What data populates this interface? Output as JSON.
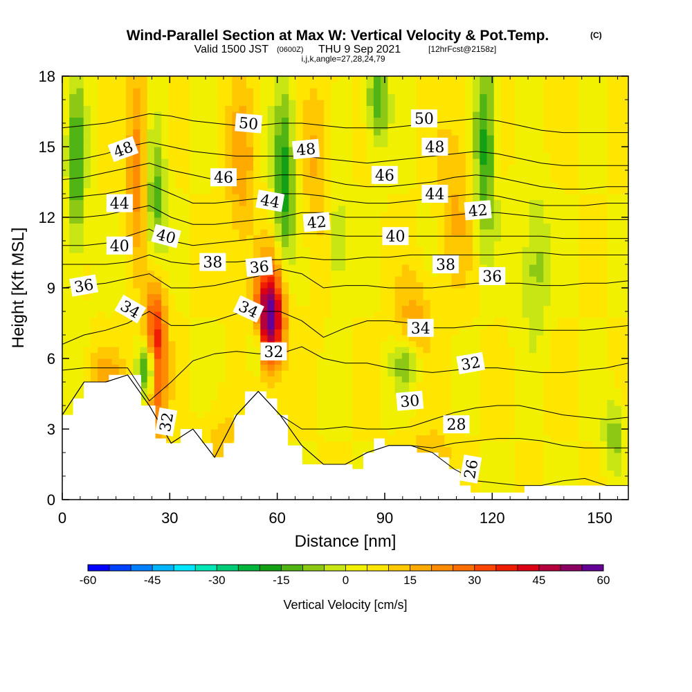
{
  "header": {
    "title": "Wind-Parallel Section at Max W: Vertical Velocity & Pot.Temp.",
    "title_suffix": "(C)",
    "valid_prefix": "Valid 1500 JST",
    "valid_utc": "(0600Z)",
    "valid_date": "THU 9 Sep 2021",
    "forecast_info": "[12hrFcst@2158z]",
    "grid_info": "i,j,k,angle=27,28,24,79"
  },
  "chart_data": {
    "type": "heatmap",
    "title": "Wind-Parallel Section at Max W: Vertical Velocity & Pot.Temp.",
    "xlabel": "Distance [nm]",
    "ylabel": "Height [Kft MSL]",
    "xlim": [
      0,
      158
    ],
    "ylim": [
      0,
      18
    ],
    "x_ticks": [
      0,
      30,
      60,
      90,
      120,
      150
    ],
    "x_tick_labels": [
      "0",
      "30",
      "60",
      "90",
      "120",
      "150"
    ],
    "y_ticks": [
      0,
      3,
      6,
      9,
      12,
      15,
      18
    ],
    "y_tick_labels": [
      "0",
      "3",
      "6",
      "9",
      "12",
      "15",
      "18"
    ],
    "grid": false,
    "background_value": 5,
    "updrafts": [
      {
        "x": 58,
        "y": 7.8,
        "max": 60,
        "rx": 4,
        "ry": 2.2
      },
      {
        "x": 26,
        "y": 6.5,
        "max": 45,
        "rx": 3,
        "ry": 3.5
      },
      {
        "x": 21,
        "y": 14.5,
        "max": 25,
        "rx": 3,
        "ry": 4
      },
      {
        "x": 12,
        "y": 5.5,
        "max": 15,
        "rx": 6,
        "ry": 1
      },
      {
        "x": 50,
        "y": 14,
        "max": 18,
        "rx": 4,
        "ry": 4
      },
      {
        "x": 71,
        "y": 14,
        "max": 15,
        "rx": 4,
        "ry": 4
      },
      {
        "x": 98,
        "y": 7.5,
        "max": 18,
        "rx": 5,
        "ry": 2
      },
      {
        "x": 110,
        "y": 13,
        "max": 15,
        "rx": 5,
        "ry": 4
      },
      {
        "x": 103,
        "y": 2,
        "max": 15,
        "rx": 6,
        "ry": 1
      },
      {
        "x": 45,
        "y": 2.5,
        "max": 12,
        "rx": 6,
        "ry": 1.5
      }
    ],
    "downdrafts": [
      {
        "x": 24,
        "y": 5.5,
        "min": -30,
        "rx": 2.5,
        "ry": 1.2
      },
      {
        "x": 26,
        "y": 12,
        "min": -15,
        "rx": 3,
        "ry": 4
      },
      {
        "x": 4,
        "y": 14,
        "min": -15,
        "rx": 2.5,
        "ry": 4
      },
      {
        "x": 62,
        "y": 13.5,
        "min": -18,
        "rx": 3,
        "ry": 4
      },
      {
        "x": 54,
        "y": 6.5,
        "min": -12,
        "rx": 2,
        "ry": 1.2
      },
      {
        "x": 88,
        "y": 17,
        "min": -15,
        "rx": 3,
        "ry": 2
      },
      {
        "x": 118,
        "y": 15,
        "min": -18,
        "rx": 3,
        "ry": 4
      },
      {
        "x": 96,
        "y": 5.8,
        "min": -12,
        "rx": 4,
        "ry": 1
      },
      {
        "x": 132,
        "y": 10,
        "min": -8,
        "rx": 4,
        "ry": 3
      },
      {
        "x": 77,
        "y": 11,
        "min": -8,
        "rx": 3,
        "ry": 2
      },
      {
        "x": 154,
        "y": 2.8,
        "min": -8,
        "rx": 3,
        "ry": 1.5
      }
    ],
    "terrain": {
      "x": [
        0,
        3,
        3,
        6,
        6,
        13,
        13,
        22,
        22,
        26,
        26,
        29,
        29,
        33,
        33,
        39,
        39,
        42,
        42,
        45,
        45,
        48,
        48,
        51,
        51,
        57,
        57,
        60,
        60,
        63,
        63,
        67,
        67,
        81,
        81,
        84,
        84,
        87,
        87,
        90,
        90,
        99,
        99,
        105,
        105,
        108,
        108,
        111,
        111,
        114,
        114,
        120,
        120,
        126,
        126,
        129,
        129,
        141,
        141,
        158
      ],
      "y": [
        3.6,
        3.6,
        4.3,
        4.3,
        5.0,
        5.0,
        5.3,
        5.3,
        4.0,
        4.0,
        2.6,
        2.6,
        2.4,
        2.4,
        3.0,
        3.0,
        2.4,
        2.4,
        1.8,
        1.8,
        2.4,
        2.4,
        3.6,
        3.6,
        4.6,
        4.6,
        4.3,
        4.3,
        3.6,
        3.6,
        2.3,
        2.3,
        1.5,
        1.5,
        1.3,
        1.3,
        2.0,
        2.0,
        2.6,
        2.6,
        2.3,
        2.3,
        2.0,
        2.0,
        1.8,
        1.8,
        1.3,
        1.3,
        0.6,
        0.6,
        0.3,
        0.3,
        0.3,
        0.3,
        0.3,
        0.3,
        0.6,
        0.6,
        0.6,
        0.6
      ]
    },
    "theta_contours": [
      {
        "level": 26,
        "y": [
          0.4,
          0.4,
          0.4,
          0.4,
          0.4,
          0.4,
          0.4,
          0.4,
          0.4,
          0.4,
          0.4,
          0.4,
          0.4,
          0.4,
          0.4,
          0.4,
          0.6,
          0.8,
          0.9,
          0.8,
          0.7,
          0.6,
          0.5,
          0.8,
          0.9,
          0.6,
          0.5
        ]
      },
      {
        "level": 28,
        "y": [
          0.8,
          0.8,
          0.8,
          0.8,
          0.8,
          0.8,
          0.8,
          0.8,
          0.8,
          0.8,
          0.8,
          0.8,
          0.8,
          1.3,
          1.6,
          1.8,
          2.0,
          2.2,
          2.4,
          2.5,
          2.6,
          2.6,
          2.5,
          2.3,
          2.2,
          2.2,
          2.2
        ]
      },
      {
        "level": 30,
        "y": [
          1.2,
          1.2,
          1.2,
          1.2,
          1.2,
          1.2,
          1.2,
          1.2,
          1.2,
          1.2,
          3.0,
          3.0,
          3.0,
          3.1,
          3.0,
          3.0,
          3.1,
          3.4,
          3.7,
          3.9,
          4.0,
          4.0,
          3.8,
          3.6,
          3.5,
          3.4,
          3.5
        ]
      },
      {
        "level": 32,
        "y": [
          5.5,
          5.6,
          5.6,
          5.6,
          4.2,
          5.0,
          5.9,
          6.2,
          6.3,
          6.2,
          6.2,
          6.5,
          6.0,
          5.8,
          5.8,
          5.6,
          5.5,
          5.4,
          5.5,
          5.6,
          5.6,
          5.5,
          5.4,
          5.4,
          5.5,
          5.6,
          5.8
        ]
      },
      {
        "level": 34,
        "y": [
          6.6,
          7.0,
          7.2,
          7.5,
          8.0,
          7.4,
          7.4,
          7.6,
          7.9,
          8.0,
          8.0,
          7.6,
          6.9,
          7.3,
          7.6,
          7.6,
          7.5,
          7.3,
          7.3,
          7.4,
          7.4,
          7.3,
          7.2,
          7.2,
          7.2,
          7.3,
          7.4
        ]
      },
      {
        "level": 36,
        "y": [
          9.0,
          9.1,
          9.2,
          9.4,
          9.6,
          9.0,
          9.0,
          9.1,
          9.3,
          9.5,
          9.8,
          9.6,
          9.0,
          9.1,
          9.1,
          9.0,
          9.0,
          9.0,
          9.1,
          9.2,
          9.2,
          9.2,
          9.1,
          9.1,
          9.2,
          9.2,
          9.3
        ]
      },
      {
        "level": 38,
        "y": [
          10.0,
          10.0,
          10.0,
          10.1,
          10.4,
          10.1,
          10.0,
          10.1,
          10.1,
          10.2,
          10.2,
          10.3,
          10.2,
          10.2,
          10.3,
          10.3,
          10.4,
          10.4,
          10.4,
          10.4,
          10.4,
          10.5,
          10.5,
          10.4,
          10.4,
          10.4,
          10.4
        ]
      },
      {
        "level": 40,
        "y": [
          10.8,
          10.8,
          10.9,
          11.2,
          11.5,
          11.0,
          10.8,
          10.9,
          11.0,
          11.1,
          11.2,
          11.3,
          11.3,
          11.2,
          11.2,
          11.2,
          11.2,
          11.2,
          11.2,
          11.2,
          11.2,
          11.2,
          11.2,
          11.1,
          11.1,
          11.1,
          11.1
        ]
      },
      {
        "level": 42,
        "y": [
          12.0,
          12.0,
          12.1,
          12.3,
          12.5,
          12.0,
          11.7,
          11.7,
          11.8,
          11.9,
          12.0,
          12.2,
          12.2,
          12.0,
          12.0,
          12.0,
          12.0,
          12.0,
          12.1,
          12.2,
          12.2,
          12.1,
          12.0,
          11.9,
          11.9,
          11.9,
          11.9
        ]
      },
      {
        "level": 44,
        "y": [
          12.8,
          12.9,
          13.0,
          13.2,
          13.4,
          13.0,
          12.6,
          12.6,
          12.7,
          12.8,
          13.0,
          13.0,
          12.9,
          12.7,
          12.6,
          12.6,
          12.7,
          12.8,
          12.9,
          13.0,
          12.9,
          12.7,
          12.5,
          12.5,
          12.5,
          12.6,
          12.6
        ]
      },
      {
        "level": 46,
        "y": [
          13.6,
          13.7,
          13.9,
          14.1,
          14.3,
          14.0,
          13.8,
          13.6,
          13.6,
          13.7,
          13.8,
          13.8,
          13.6,
          13.4,
          13.3,
          13.3,
          13.4,
          13.5,
          13.7,
          13.8,
          13.7,
          13.5,
          13.3,
          13.2,
          13.2,
          13.3,
          13.3
        ]
      },
      {
        "level": 48,
        "y": [
          14.4,
          14.5,
          14.7,
          15.0,
          15.2,
          15.0,
          14.8,
          14.7,
          14.6,
          14.6,
          14.6,
          14.6,
          14.5,
          14.4,
          14.3,
          14.4,
          14.5,
          14.6,
          14.7,
          14.8,
          14.7,
          14.5,
          14.3,
          14.2,
          14.2,
          14.2,
          14.2
        ]
      },
      {
        "level": 50,
        "y": [
          15.8,
          15.9,
          16.0,
          16.2,
          16.4,
          16.3,
          16.1,
          16.0,
          15.9,
          15.9,
          16.0,
          16.0,
          15.9,
          15.8,
          15.8,
          15.8,
          15.9,
          16.0,
          16.1,
          16.2,
          16.1,
          15.9,
          15.7,
          15.6,
          15.6,
          15.6,
          15.6
        ]
      }
    ],
    "contour_labels": [
      {
        "text": "50",
        "x": 52,
        "y": 16.0,
        "angle": 5
      },
      {
        "text": "50",
        "x": 101,
        "y": 16.2,
        "angle": 0
      },
      {
        "text": "48",
        "x": 17,
        "y": 14.9,
        "angle": -20
      },
      {
        "text": "48",
        "x": 68,
        "y": 14.9,
        "angle": -5
      },
      {
        "text": "48",
        "x": 104,
        "y": 15.0,
        "angle": 0
      },
      {
        "text": "46",
        "x": 45,
        "y": 13.7,
        "angle": 0
      },
      {
        "text": "46",
        "x": 90,
        "y": 13.8,
        "angle": 0
      },
      {
        "text": "44",
        "x": 16,
        "y": 12.6,
        "angle": 0
      },
      {
        "text": "44",
        "x": 58,
        "y": 12.7,
        "angle": 10
      },
      {
        "text": "44",
        "x": 104,
        "y": 13.0,
        "angle": 0
      },
      {
        "text": "42",
        "x": 71,
        "y": 11.8,
        "angle": -5
      },
      {
        "text": "42",
        "x": 116,
        "y": 12.3,
        "angle": -5
      },
      {
        "text": "40",
        "x": 16,
        "y": 10.8,
        "angle": 0
      },
      {
        "text": "40",
        "x": 29,
        "y": 11.2,
        "angle": 15
      },
      {
        "text": "40",
        "x": 93,
        "y": 11.2,
        "angle": 0
      },
      {
        "text": "38",
        "x": 42,
        "y": 10.1,
        "angle": 0
      },
      {
        "text": "38",
        "x": 107,
        "y": 10.0,
        "angle": 0
      },
      {
        "text": "36",
        "x": 6,
        "y": 9.1,
        "angle": -10
      },
      {
        "text": "36",
        "x": 55,
        "y": 9.9,
        "angle": -5
      },
      {
        "text": "36",
        "x": 120,
        "y": 9.5,
        "angle": 0
      },
      {
        "text": "34",
        "x": 19,
        "y": 8.1,
        "angle": 30
      },
      {
        "text": "34",
        "x": 52,
        "y": 8.1,
        "angle": 25
      },
      {
        "text": "34",
        "x": 100,
        "y": 7.3,
        "angle": 0
      },
      {
        "text": "32",
        "x": 59,
        "y": 6.3,
        "angle": 0
      },
      {
        "text": "32",
        "x": 114,
        "y": 5.8,
        "angle": -10
      },
      {
        "text": "32",
        "x": 29,
        "y": 3.3,
        "angle": -80
      },
      {
        "text": "30",
        "x": 97,
        "y": 4.2,
        "angle": -5
      },
      {
        "text": "28",
        "x": 110,
        "y": 3.2,
        "angle": 0
      },
      {
        "text": "26",
        "x": 114,
        "y": 1.3,
        "angle": -80
      }
    ]
  },
  "colorbar": {
    "label": "Vertical Velocity [cm/s]",
    "min": -60,
    "max": 60,
    "step": 5,
    "tick_values": [
      -60,
      -45,
      -30,
      -15,
      0,
      15,
      30,
      45,
      60
    ],
    "tick_labels": [
      "-60",
      "-45",
      "-30",
      "-15",
      "0",
      "15",
      "30",
      "45",
      "60"
    ],
    "colors": [
      "#0000ff",
      "#0040ff",
      "#0080ff",
      "#00b4ff",
      "#00e6ff",
      "#00e6b4",
      "#00cc78",
      "#00b43c",
      "#14a014",
      "#50b414",
      "#8cc814",
      "#c8e614",
      "#f0f000",
      "#ffe600",
      "#ffc800",
      "#ffaa00",
      "#ff8c00",
      "#ff6e00",
      "#ff4600",
      "#f01e00",
      "#dc0014",
      "#b4003c",
      "#8c0064",
      "#640096"
    ]
  }
}
